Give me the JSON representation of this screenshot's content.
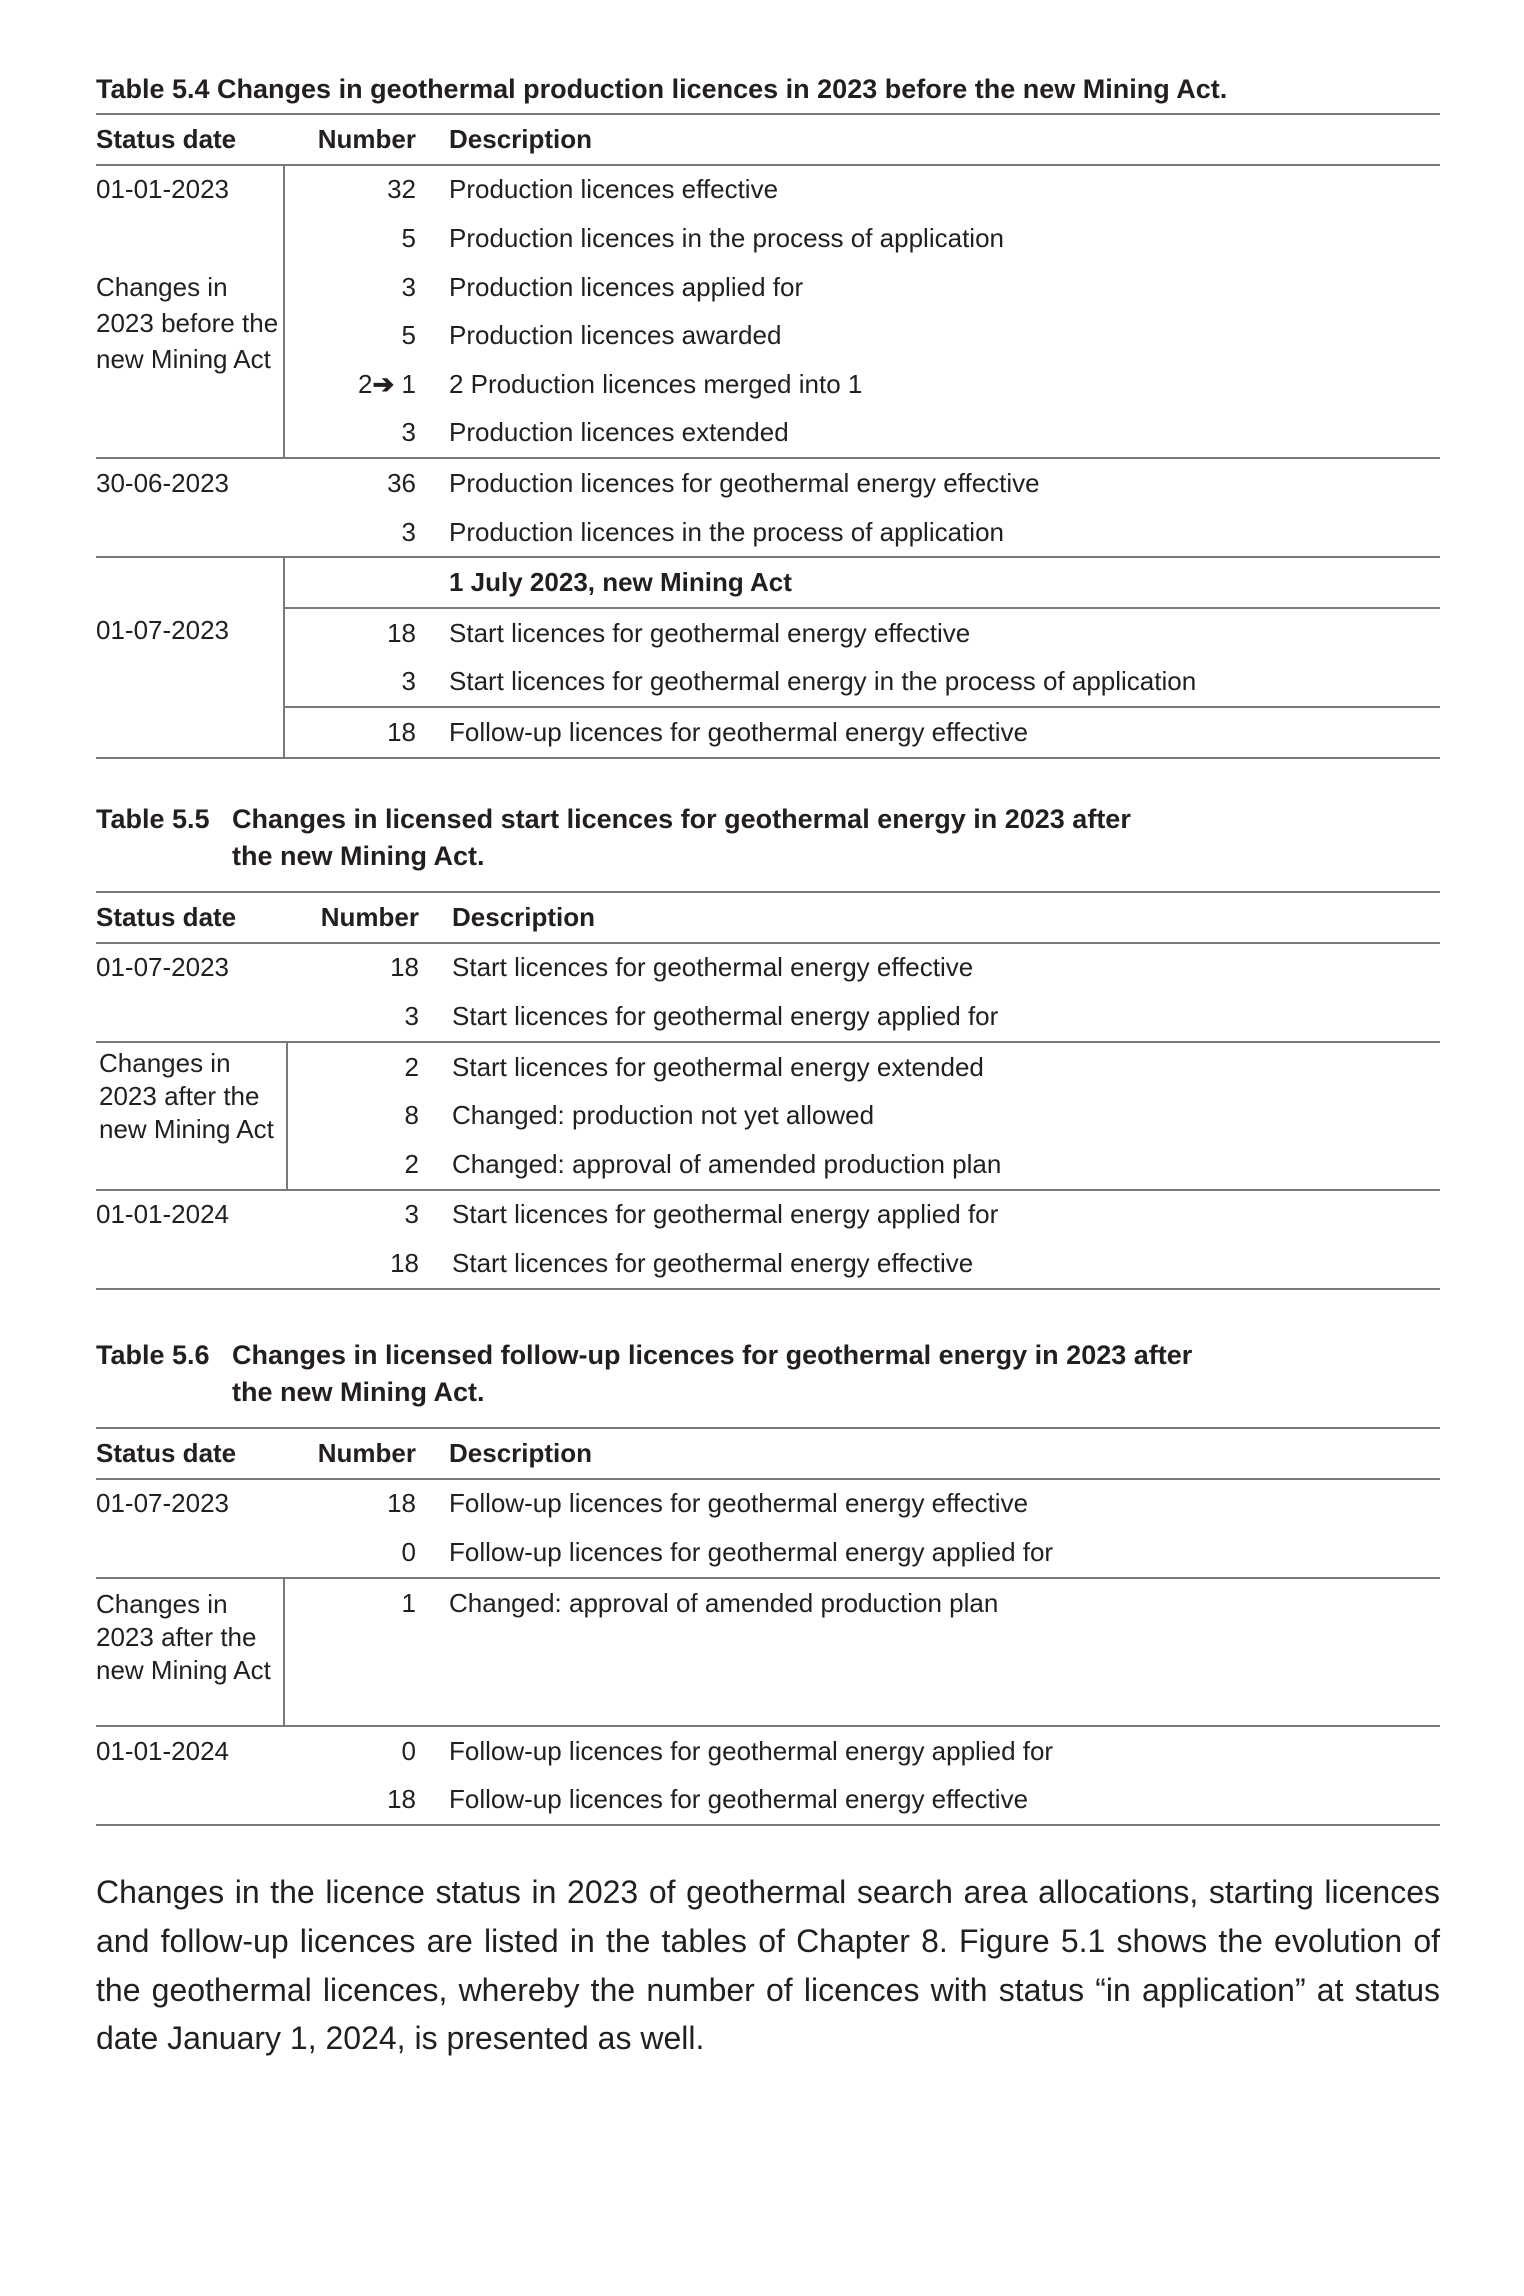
{
  "table_5_4": {
    "title": "Table 5.4 Changes in geothermal production licences in 2023 before the new Mining Act.",
    "headers": [
      "Status date",
      "Number",
      "Description"
    ],
    "rows": [
      {
        "date": "01-01-2023",
        "number": "32",
        "desc": "Production licences effective"
      },
      {
        "date": "",
        "number": "5",
        "desc": "Production licences in the process of application"
      },
      {
        "date": "Changes in 2023 before the new Mining Act",
        "number": "3",
        "desc": "Production licences applied for"
      },
      {
        "number": "5",
        "desc": "Production licences awarded"
      },
      {
        "number_from": "2",
        "arrow": "➔",
        "number": "1",
        "desc": "2 Production licences merged into 1"
      },
      {
        "number": "3",
        "desc": "Production licences extended"
      },
      {
        "date": "30-06-2023",
        "number": "36",
        "desc": "Production licences for geothermal energy effective"
      },
      {
        "date": "",
        "number": "3",
        "desc": "Production licences in the process of application"
      },
      {
        "date": "01-07-2023",
        "number": "",
        "desc": "1 July 2023, new Mining Act"
      },
      {
        "number": "18",
        "desc": "Start licences for geothermal energy effective"
      },
      {
        "number": "3",
        "desc": "Start licences for geothermal energy in the process of application"
      },
      {
        "number": "18",
        "desc": "Follow-up licences for geothermal energy effective"
      }
    ]
  },
  "table_5_5": {
    "label": "Table 5.5",
    "title": "Changes in licensed start licences for geothermal energy in 2023 after the new Mining Act.",
    "headers": [
      "Status date",
      "Number",
      "Description"
    ],
    "rows": [
      {
        "date": "01-07-2023",
        "number": "18",
        "desc": "Start licences for geothermal energy effective"
      },
      {
        "date": "",
        "number": "3",
        "desc": "Start licences for geothermal energy applied for"
      },
      {
        "date": "Changes in 2023 after the new Mining Act",
        "number": "2",
        "desc": "Start licences for geothermal energy extended"
      },
      {
        "number": "8",
        "desc": "Changed: production not yet allowed"
      },
      {
        "number": "2",
        "desc": "Changed: approval of amended production plan"
      },
      {
        "date": "01-01-2024",
        "number": "3",
        "desc": "Start licences for geothermal energy applied for"
      },
      {
        "date": "",
        "number": "18",
        "desc": "Start licences for geothermal energy effective"
      }
    ]
  },
  "table_5_6": {
    "label": "Table 5.6",
    "title": "Changes in licensed follow-up licences for geothermal energy in 2023 after the new Mining Act.",
    "headers": [
      "Status date",
      "Number",
      "Description"
    ],
    "rows": [
      {
        "date": "01-07-2023",
        "number": "18",
        "desc": "Follow-up licences for geothermal energy effective"
      },
      {
        "date": "",
        "number": "0",
        "desc": "Follow-up licences for geothermal energy applied for"
      },
      {
        "date": "Changes in 2023 after the new Mining Act",
        "number": "1",
        "desc": "Changed: approval of amended production plan"
      },
      {
        "date": "01-01-2024",
        "number": "0",
        "desc": "Follow-up licences for geothermal energy applied for"
      },
      {
        "date": "",
        "number": "18",
        "desc": "Follow-up licences for geothermal energy effective"
      }
    ]
  },
  "paragraph": "Changes in the licence status in 2023 of geothermal search area allocations, starting licences and follow-up licences are listed in the tables of Chapter 8. Figure 5.1 shows the evolution of the geothermal licences, whereby the number of licences with status “in application” at status date January 1, 2024, is presented as well."
}
